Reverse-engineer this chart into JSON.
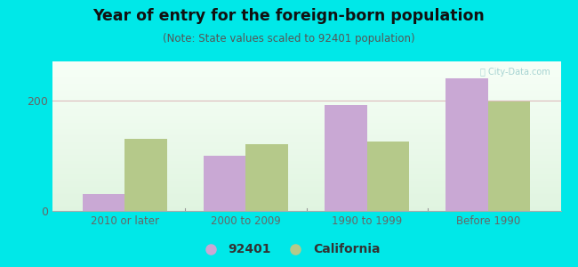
{
  "title": "Year of entry for the foreign-born population",
  "subtitle": "(Note: State values scaled to 92401 population)",
  "categories": [
    "2010 or later",
    "2000 to 2009",
    "1990 to 1999",
    "Before 1990"
  ],
  "values_92401": [
    30,
    100,
    192,
    240
  ],
  "values_california": [
    130,
    120,
    125,
    197
  ],
  "color_92401": "#c9a8d4",
  "color_california": "#b5c98a",
  "ylim": [
    0,
    270
  ],
  "yticks": [
    0,
    200
  ],
  "background_color": "#00e8e8",
  "bar_width": 0.35,
  "legend_label_92401": "92401",
  "legend_label_california": "California",
  "watermark": "City-Data.com",
  "grid_color": "#ddbbbb",
  "tick_color": "#666666",
  "title_color": "#111111",
  "subtitle_color": "#555555"
}
